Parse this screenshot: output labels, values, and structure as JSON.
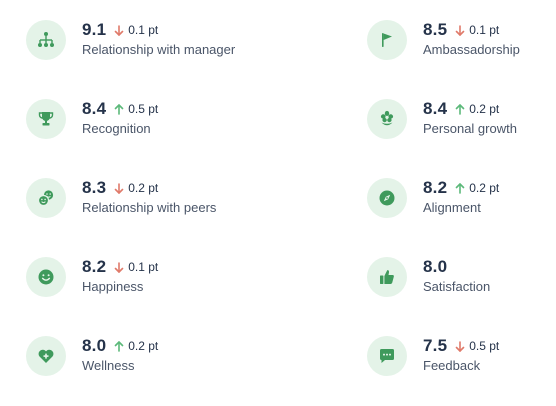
{
  "colors": {
    "icon_background": "#e4f3e8",
    "icon_foreground": "#3f9a5c",
    "arrow_up": "#5cb97a",
    "arrow_down": "#e07a6a",
    "score_text": "#25334a",
    "label_text": "#4a5568"
  },
  "metrics": [
    {
      "label": "Relationship with manager",
      "score": "9.1",
      "change": "0.1 pt",
      "direction": "down",
      "icon": "org-chart-icon"
    },
    {
      "label": "Ambassadorship",
      "score": "8.5",
      "change": "0.1 pt",
      "direction": "down",
      "icon": "flag-icon"
    },
    {
      "label": "Recognition",
      "score": "8.4",
      "change": "0.5 pt",
      "direction": "up",
      "icon": "trophy-icon"
    },
    {
      "label": "Personal growth",
      "score": "8.4",
      "change": "0.2 pt",
      "direction": "up",
      "icon": "flower-icon"
    },
    {
      "label": "Relationship with peers",
      "score": "8.3",
      "change": "0.2 pt",
      "direction": "down",
      "icon": "peer-faces-icon"
    },
    {
      "label": "Alignment",
      "score": "8.2",
      "change": "0.2 pt",
      "direction": "up",
      "icon": "compass-icon"
    },
    {
      "label": "Happiness",
      "score": "8.2",
      "change": "0.1 pt",
      "direction": "down",
      "icon": "smiley-icon"
    },
    {
      "label": "Satisfaction",
      "score": "8.0",
      "change": "",
      "direction": "none",
      "icon": "thumbs-up-icon"
    },
    {
      "label": "Wellness",
      "score": "8.0",
      "change": "0.2 pt",
      "direction": "up",
      "icon": "heart-plus-icon"
    },
    {
      "label": "Feedback",
      "score": "7.5",
      "change": "0.5 pt",
      "direction": "down",
      "icon": "chat-bubble-icon"
    }
  ]
}
